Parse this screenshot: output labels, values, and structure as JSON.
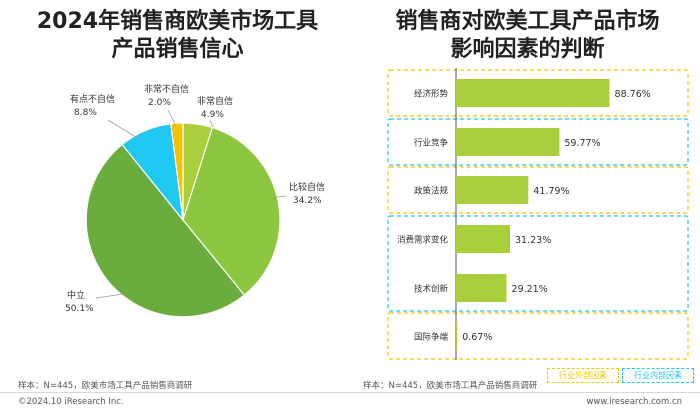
{
  "left_title": {
    "line1": "2024年销售商欧美市场工具",
    "line2": "产品销售信心"
  },
  "right_title": {
    "line1": "销售商对欧美工具产品市场",
    "line2": "影响因素的判断"
  },
  "left_note": "样本：N=445，欧美市场工具产品销售商调研",
  "right_note": "样本：N=445，欧美市场工具产品销售商调研",
  "copyright": "©2024.10 iResearch Inc.",
  "website": "www.iresearch.com.cn",
  "legend": {
    "external": {
      "label": "行业外部因素",
      "color": "#f5c400"
    },
    "internal": {
      "label": "行业内部因素",
      "color": "#1ec8f0"
    }
  },
  "chart_data": [
    {
      "type": "pie",
      "unit": "%",
      "slices": [
        {
          "label": "非常自信",
          "value": 4.9,
          "value_label": "4.9%",
          "color": "#a9cf3c"
        },
        {
          "label": "比较自信",
          "value": 34.2,
          "value_label": "34.2%",
          "color": "#8dc63f"
        },
        {
          "label": "中立",
          "value": 50.1,
          "value_label": "50.1%",
          "color": "#6aad3e"
        },
        {
          "label": "有点不自信",
          "value": 8.8,
          "value_label": "8.8%",
          "color": "#1ec8f0"
        },
        {
          "label": "非常不自信",
          "value": 2.0,
          "value_label": "2.0%",
          "color": "#f5c400"
        }
      ]
    },
    {
      "type": "bar",
      "orientation": "horizontal",
      "unit": "%",
      "bar_color": "#a9cf3c",
      "categories": [
        "经济形势",
        "行业竞争",
        "政策法规",
        "消费需求变化",
        "技术创新",
        "国际争端"
      ],
      "values": [
        88.76,
        59.77,
        41.79,
        31.23,
        29.21,
        0.67
      ],
      "value_labels": [
        "88.76%",
        "59.77%",
        "41.79%",
        "31.23%",
        "29.21%",
        "0.67%"
      ],
      "groups": [
        {
          "type": "external",
          "categories": [
            "经济形势"
          ]
        },
        {
          "type": "internal",
          "categories": [
            "行业竞争"
          ]
        },
        {
          "type": "external",
          "categories": [
            "政策法规"
          ]
        },
        {
          "type": "internal",
          "categories": [
            "消费需求变化",
            "技术创新"
          ]
        },
        {
          "type": "external",
          "categories": [
            "国际争端"
          ]
        }
      ]
    }
  ]
}
